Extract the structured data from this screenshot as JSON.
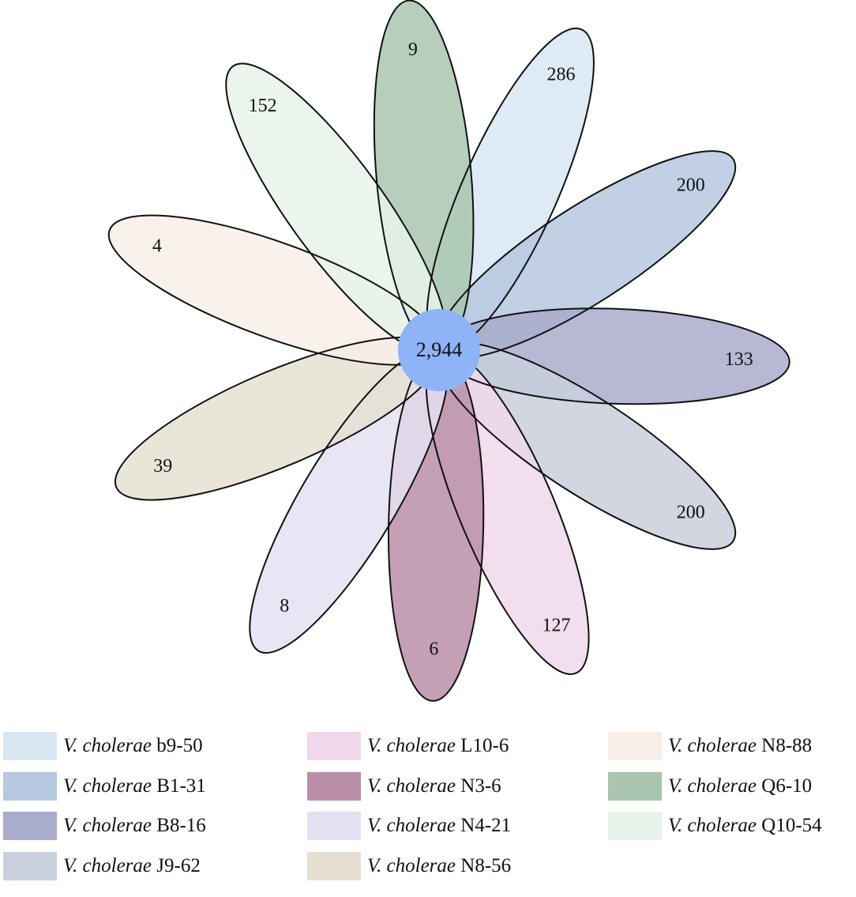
{
  "center": {
    "value": "2,944",
    "color": "#8fb3f7"
  },
  "petals": [
    {
      "id": "b9-50",
      "count": "286",
      "color": "#d8e6f2",
      "angle": 24
    },
    {
      "id": "B1-31",
      "count": "200",
      "color": "#b6c8df",
      "angle": 57
    },
    {
      "id": "B8-16",
      "count": "133",
      "color": "#a9accc",
      "angle": 92
    },
    {
      "id": "J9-62",
      "count": "200",
      "color": "#c9cfdc",
      "angle": 123
    },
    {
      "id": "L10-6",
      "count": "127",
      "color": "#f0d8ea",
      "angle": 157
    },
    {
      "id": "N3-6",
      "count": "6",
      "color": "#bb8fa8",
      "angle": 181
    },
    {
      "id": "N4-21",
      "count": "8",
      "color": "#e4e0f2",
      "angle": 211
    },
    {
      "id": "N8-56",
      "count": "39",
      "color": "#e5e0d2",
      "angle": 247
    },
    {
      "id": "N8-88",
      "count": "4",
      "color": "#f8eee9",
      "angle": 290
    },
    {
      "id": "Q6-10",
      "count": "9",
      "color": "#a9c5af",
      "angle": 355
    },
    {
      "id": "Q10-54",
      "count": "152",
      "color": "#e8f3eb",
      "angle": 324
    }
  ],
  "legend": [
    {
      "species": "V. cholerae",
      "strain": "b9-50",
      "color": "#d8e6f2"
    },
    {
      "species": "V. cholerae",
      "strain": "B1-31",
      "color": "#b6c8df"
    },
    {
      "species": "V. cholerae",
      "strain": "B8-16",
      "color": "#a9accc"
    },
    {
      "species": "V. cholerae",
      "strain": "J9-62",
      "color": "#c9cfdc"
    },
    {
      "species": "V. cholerae",
      "strain": "L10-6",
      "color": "#f0d8ea"
    },
    {
      "species": "V. cholerae",
      "strain": "N3-6",
      "color": "#bb8fa8"
    },
    {
      "species": "V. cholerae",
      "strain": "N4-21",
      "color": "#e4e0f2"
    },
    {
      "species": "V. cholerae",
      "strain": "N8-56",
      "color": "#e5e0d2"
    },
    {
      "species": "V. cholerae",
      "strain": "N8-88",
      "color": "#f8eee9"
    },
    {
      "species": "V. cholerae",
      "strain": "Q6-10",
      "color": "#a9c5af"
    },
    {
      "species": "V. cholerae",
      "strain": "Q10-54",
      "color": "#e8f3eb"
    }
  ]
}
